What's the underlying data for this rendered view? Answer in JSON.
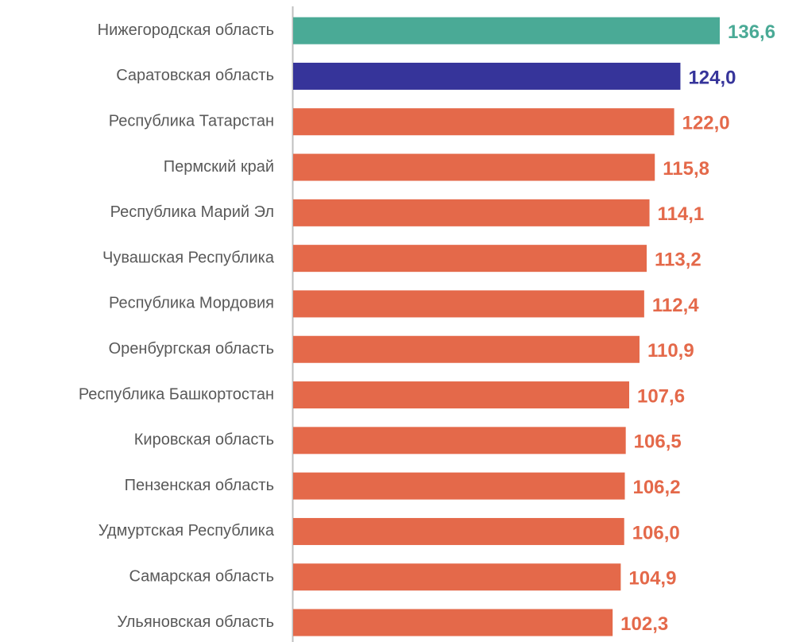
{
  "chart_data": {
    "type": "barh",
    "categories": [
      "Нижегородская область",
      "Саратовская область",
      "Республика Татарстан",
      "Пермский край",
      "Республика Марий Эл",
      "Чувашская Республика",
      "Республика Мордовия",
      "Оренбургская область",
      "Республика Башкортостан",
      "Кировская область",
      "Пензенская область",
      "Удмуртская Республика",
      "Самарская область",
      "Ульяновская область"
    ],
    "values": [
      136.6,
      124.0,
      122.0,
      115.8,
      114.1,
      113.2,
      112.4,
      110.9,
      107.6,
      106.5,
      106.2,
      106.0,
      104.9,
      102.3
    ],
    "value_labels": [
      "136,6",
      "124,0",
      "122,0",
      "115,8",
      "114,1",
      "113,2",
      "112,4",
      "110,9",
      "107,6",
      "106,5",
      "106,2",
      "106,0",
      "104,9",
      "102,3"
    ],
    "colors": [
      "#4aaa96",
      "#36349a",
      "#e4694a",
      "#e4694a",
      "#e4694a",
      "#e4694a",
      "#e4694a",
      "#e4694a",
      "#e4694a",
      "#e4694a",
      "#e4694a",
      "#e4694a",
      "#e4694a",
      "#e4694a"
    ]
  }
}
